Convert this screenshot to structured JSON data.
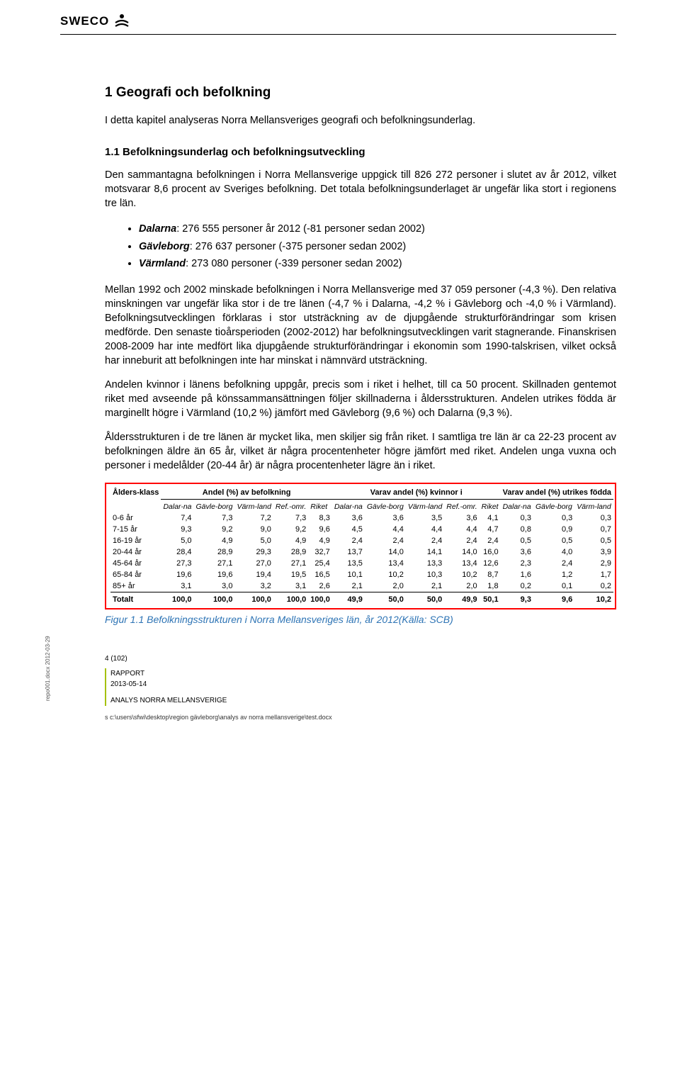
{
  "logo": {
    "text": "SWECO"
  },
  "heading1": "1   Geografi och befolkning",
  "intro": "I detta kapitel analyseras Norra Mellansveriges geografi och befolkningsunderlag.",
  "heading2": "1.1   Befolkningsunderlag och befolkningsutveckling",
  "para1": "Den sammantagna befolkningen i Norra Mellansverige uppgick till 826 272 personer i slutet av år 2012, vilket motsvarar 8,6 procent av Sveriges befolkning. Det totala befolkningsunderlaget är ungefär lika stort i regionens tre län.",
  "bullets": [
    {
      "bold": "Dalarna",
      "rest": ": 276 555 personer år 2012 (-81 personer sedan 2002)"
    },
    {
      "bold": "Gävleborg",
      "rest": ": 276 637 personer (-375 personer sedan 2002)"
    },
    {
      "bold": "Värmland",
      "rest": ": 273 080 personer (-339 personer sedan 2002)"
    }
  ],
  "para2": "Mellan 1992 och 2002 minskade befolkningen i Norra Mellansverige med 37 059 personer (-4,3 %). Den relativa minskningen var ungefär lika stor i de tre länen (-4,7 % i Dalarna, -4,2 % i Gävleborg och -4,0 % i Värmland). Befolkningsutvecklingen förklaras i stor utsträckning av de djupgående strukturförändringar som krisen medförde. Den senaste tioårsperioden (2002-2012) har befolkningsutvecklingen varit stagnerande. Finanskrisen 2008-2009 har inte medfört lika djupgående strukturförändringar i ekonomin som 1990-talskrisen, vilket också har inneburit att befolkningen inte har minskat i nämnvärd utsträckning.",
  "para3": "Andelen kvinnor i länens befolkning uppgår, precis som i riket i helhet, till ca 50 procent. Skillnaden gentemot riket med avseende på könssammansättningen följer skillnaderna i åldersstrukturen. Andelen utrikes födda är marginellt högre i Värmland (10,2 %) jämfört med Gävleborg (9,6 %) och Dalarna (9,3 %).",
  "para4": "Åldersstrukturen i de tre länen är mycket lika, men skiljer sig från riket. I samtliga tre län är ca 22-23 procent av befolkningen äldre än 65 år, vilket är några procentenheter högre jämfört med riket. Andelen unga vuxna och personer i medelålder (20-44 år) är några procentenheter lägre än i riket.",
  "table": {
    "border_color": "#ff0000",
    "group_col1": "Ålders-klass",
    "groups": [
      "Andel (%) av befolkning",
      "Varav andel (%) kvinnor i",
      "Varav andel (%) utrikes födda"
    ],
    "subcols_g1": [
      "Dalar-na",
      "Gävle-borg",
      "Värm-land",
      "Ref.-omr.",
      "Riket"
    ],
    "subcols_g2": [
      "Dalar-na",
      "Gävle-borg",
      "Värm-land",
      "Ref.-omr.",
      "Riket"
    ],
    "subcols_g3": [
      "Dalar-na",
      "Gävle-borg",
      "Värm-land"
    ],
    "rows": [
      {
        "label": "0-6 år",
        "v": [
          "7,4",
          "7,3",
          "7,2",
          "7,3",
          "8,3",
          "3,6",
          "3,6",
          "3,5",
          "3,6",
          "4,1",
          "0,3",
          "0,3",
          "0,3"
        ]
      },
      {
        "label": "7-15 år",
        "v": [
          "9,3",
          "9,2",
          "9,0",
          "9,2",
          "9,6",
          "4,5",
          "4,4",
          "4,4",
          "4,4",
          "4,7",
          "0,8",
          "0,9",
          "0,7"
        ]
      },
      {
        "label": "16-19 år",
        "v": [
          "5,0",
          "4,9",
          "5,0",
          "4,9",
          "4,9",
          "2,4",
          "2,4",
          "2,4",
          "2,4",
          "2,4",
          "0,5",
          "0,5",
          "0,5"
        ]
      },
      {
        "label": "20-44 år",
        "v": [
          "28,4",
          "28,9",
          "29,3",
          "28,9",
          "32,7",
          "13,7",
          "14,0",
          "14,1",
          "14,0",
          "16,0",
          "3,6",
          "4,0",
          "3,9"
        ]
      },
      {
        "label": "45-64 år",
        "v": [
          "27,3",
          "27,1",
          "27,0",
          "27,1",
          "25,4",
          "13,5",
          "13,4",
          "13,3",
          "13,4",
          "12,6",
          "2,3",
          "2,4",
          "2,9"
        ]
      },
      {
        "label": "65-84 år",
        "v": [
          "19,6",
          "19,6",
          "19,4",
          "19,5",
          "16,5",
          "10,1",
          "10,2",
          "10,3",
          "10,2",
          "8,7",
          "1,6",
          "1,2",
          "1,7"
        ]
      },
      {
        "label": "85+ år",
        "v": [
          "3,1",
          "3,0",
          "3,2",
          "3,1",
          "2,6",
          "2,1",
          "2,0",
          "2,1",
          "2,0",
          "1,8",
          "0,2",
          "0,1",
          "0,2"
        ]
      }
    ],
    "total": {
      "label": "Totalt",
      "v": [
        "100,0",
        "100,0",
        "100,0",
        "100,0",
        "100,0",
        "49,9",
        "50,0",
        "50,0",
        "49,9",
        "50,1",
        "9,3",
        "9,6",
        "10,2"
      ]
    }
  },
  "figure_caption": "Figur 1.1 Befolkningsstrukturen i Norra Mellansveriges län, år 2012(Källa: SCB)",
  "footer": {
    "page": "4 (102)",
    "report": "RAPPORT",
    "date": "2013-05-14",
    "analysis": "ANALYS NORRA MELLANSVERIGE",
    "side": "repo001.docx 2012-03-29",
    "path": "s c:\\users\\sfwi\\desktop\\region gävleborg\\analys av norra mellansverige\\test.docx"
  }
}
